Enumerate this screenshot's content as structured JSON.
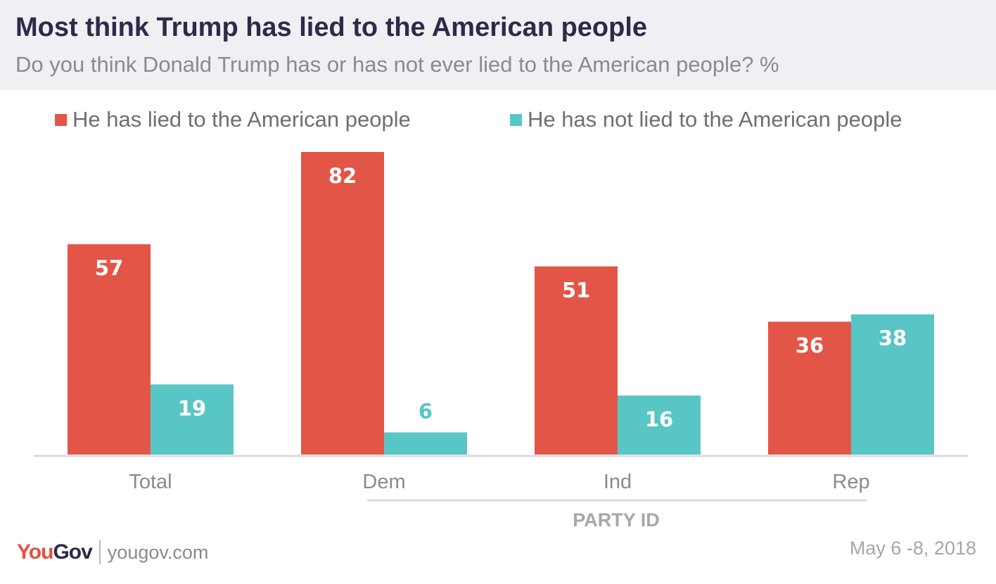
{
  "header": {
    "title": "Most think Trump has lied to the American people",
    "subtitle": "Do you think Donald Trump has or has not ever lied to the American people? %"
  },
  "chart_data": {
    "type": "bar",
    "categories": [
      "Total",
      "Dem",
      "Ind",
      "Rep"
    ],
    "series": [
      {
        "name": "He has lied to the American people",
        "color": "#e35547",
        "values": [
          57,
          82,
          51,
          36
        ]
      },
      {
        "name": "He has not lied to the American people",
        "color": "#58c6c4",
        "values": [
          19,
          6,
          16,
          38
        ]
      }
    ],
    "group_label": "PARTY ID",
    "ylim": [
      0,
      82
    ],
    "legend_position": "top",
    "grid": false
  },
  "footer": {
    "logo_you": "You",
    "logo_gov": "Gov",
    "site": "yougov.com",
    "date": "May 6 -8, 2018"
  }
}
